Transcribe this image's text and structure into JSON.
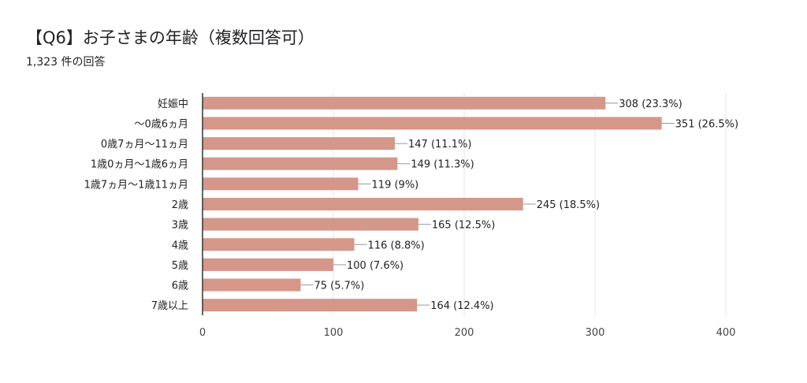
{
  "title": "【Q6】お子さまの年齢（複数回答可）",
  "subtitle": "1,323 件の回答",
  "colors": {
    "bar": "#d4978a",
    "leader": "#999999",
    "grid": "#e6e6e6",
    "axis": "#333333"
  },
  "chart_data": {
    "type": "bar",
    "orientation": "horizontal",
    "categories": [
      "妊娠中",
      "〜0歳6ヵ月",
      "0歳7ヵ月〜11ヵ月",
      "1歳0ヵ月〜1歳6ヵ月",
      "1歳7ヵ月〜1歳11ヵ月",
      "2歳",
      "3歳",
      "4歳",
      "5歳",
      "6歳",
      "7歳以上"
    ],
    "values": [
      308,
      351,
      147,
      149,
      119,
      245,
      165,
      116,
      100,
      75,
      164
    ],
    "value_labels": [
      "308 (23.3%)",
      "351 (26.5%)",
      "147 (11.1%)",
      "149 (11.3%)",
      "119 (9%)",
      "245 (18.5%)",
      "165 (12.5%)",
      "116 (8.8%)",
      "100 (7.6%)",
      "75 (5.7%)",
      "164 (12.4%)"
    ],
    "xticks": [
      "0",
      "100",
      "200",
      "300",
      "400"
    ],
    "xlim": [
      0,
      400
    ],
    "grid": true
  }
}
